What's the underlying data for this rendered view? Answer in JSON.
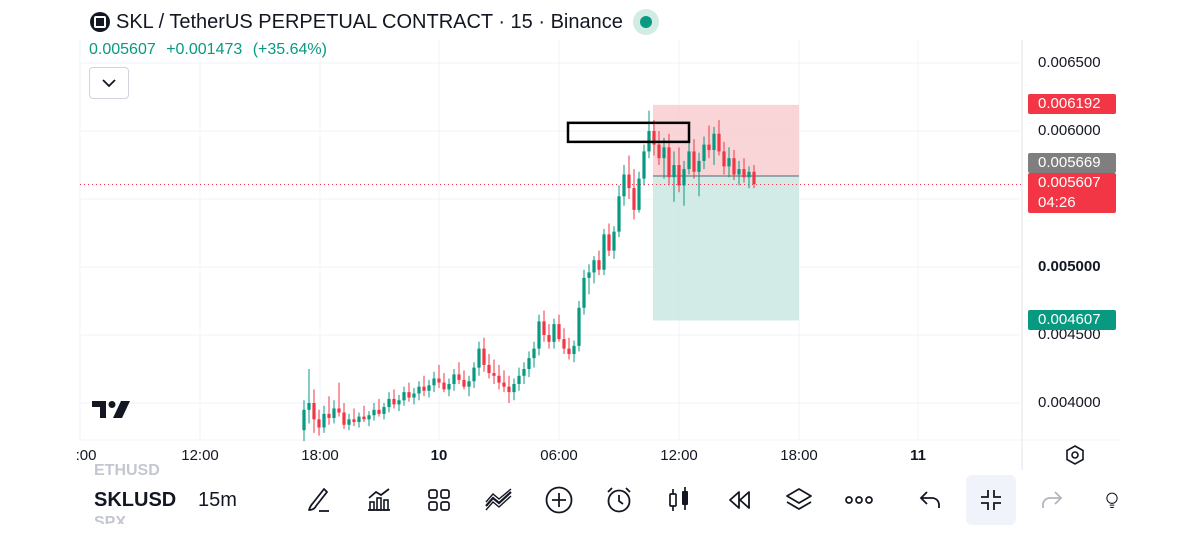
{
  "header": {
    "title": "SKL / TetherUS PERPETUAL CONTRACT · 15 · Binance",
    "last_price": "0.005607",
    "change": "+0.001473",
    "change_pct": "(+35.64%)"
  },
  "price_tags": {
    "stop": "0.006192",
    "entry": "0.005669",
    "last": "0.005607",
    "countdown": "04:26",
    "target": "0.004607"
  },
  "toolbar": {
    "symbol": "SKLUSD",
    "symbol_above": "ETHUSD",
    "symbol_below": "SPX",
    "interval": "15m"
  },
  "colors": {
    "up": "#089981",
    "down": "#f23645",
    "stop_zone": "#f8d0d4",
    "target_zone": "#cde9e3",
    "entry_tag": "#7f7f7f"
  },
  "icons": [
    "pen-icon",
    "indicators-icon",
    "templates-icon",
    "compare-icon",
    "add-icon",
    "alert-icon",
    "bar-style-icon",
    "replay-icon",
    "layers-icon",
    "more-icon",
    "undo-icon",
    "collapse-icon",
    "redo-icon",
    "idea-icon"
  ],
  "chart_data": {
    "type": "candlestick",
    "title": "SKL / TetherUS PERPETUAL CONTRACT · 15 · Binance",
    "xlabel": "",
    "ylabel": "",
    "ylim": [
      0.00375,
      0.00667
    ],
    "y_ticks": [
      "0.006500",
      "0.006000",
      "0.005000",
      "0.004500",
      "0.004000"
    ],
    "y_ticks_bold": [
      "0.005000"
    ],
    "x_ticks": [
      ":00",
      "12:00",
      "18:00",
      "10",
      "06:00",
      "12:00",
      "18:00",
      "11"
    ],
    "x_ticks_bold": [
      "10",
      "11"
    ],
    "interval_minutes": 15,
    "candles": [
      [
        0.0038,
        0.00402,
        0.00372,
        0.00395
      ],
      [
        0.00395,
        0.00425,
        0.00385,
        0.004
      ],
      [
        0.004,
        0.0041,
        0.00378,
        0.00388
      ],
      [
        0.00388,
        0.00395,
        0.00376,
        0.00382
      ],
      [
        0.00382,
        0.00398,
        0.00378,
        0.00392
      ],
      [
        0.00392,
        0.00405,
        0.00384,
        0.00389
      ],
      [
        0.00389,
        0.00402,
        0.00385,
        0.00396
      ],
      [
        0.00396,
        0.00415,
        0.0039,
        0.00393
      ],
      [
        0.00393,
        0.004,
        0.00381,
        0.00384
      ],
      [
        0.00384,
        0.00392,
        0.0038,
        0.00388
      ],
      [
        0.00388,
        0.00396,
        0.00383,
        0.00386
      ],
      [
        0.00386,
        0.00393,
        0.00382,
        0.0039
      ],
      [
        0.0039,
        0.00398,
        0.00386,
        0.00388
      ],
      [
        0.00388,
        0.00394,
        0.00383,
        0.00391
      ],
      [
        0.00391,
        0.004,
        0.00387,
        0.00395
      ],
      [
        0.00395,
        0.00403,
        0.0039,
        0.00392
      ],
      [
        0.00392,
        0.004,
        0.00388,
        0.00397
      ],
      [
        0.00397,
        0.00408,
        0.00393,
        0.00403
      ],
      [
        0.00403,
        0.0041,
        0.00396,
        0.00399
      ],
      [
        0.00399,
        0.00406,
        0.00394,
        0.00402
      ],
      [
        0.00402,
        0.00412,
        0.00398,
        0.00408
      ],
      [
        0.00408,
        0.00415,
        0.00401,
        0.00404
      ],
      [
        0.00404,
        0.00411,
        0.00399,
        0.00407
      ],
      [
        0.00407,
        0.00416,
        0.00402,
        0.00412
      ],
      [
        0.00412,
        0.0042,
        0.00405,
        0.00409
      ],
      [
        0.00409,
        0.00417,
        0.00404,
        0.00413
      ],
      [
        0.00413,
        0.00423,
        0.00408,
        0.00418
      ],
      [
        0.00418,
        0.00428,
        0.00411,
        0.00415
      ],
      [
        0.00415,
        0.00422,
        0.00408,
        0.0041
      ],
      [
        0.0041,
        0.00418,
        0.00405,
        0.00414
      ],
      [
        0.00414,
        0.00425,
        0.00409,
        0.00421
      ],
      [
        0.00421,
        0.0043,
        0.00414,
        0.00417
      ],
      [
        0.00417,
        0.00424,
        0.0041,
        0.00412
      ],
      [
        0.00412,
        0.0042,
        0.00405,
        0.00416
      ],
      [
        0.00416,
        0.0043,
        0.00411,
        0.00426
      ],
      [
        0.00426,
        0.00445,
        0.0042,
        0.0044
      ],
      [
        0.0044,
        0.00448,
        0.00423,
        0.00428
      ],
      [
        0.00428,
        0.00436,
        0.00418,
        0.00422
      ],
      [
        0.00422,
        0.00432,
        0.00414,
        0.0042
      ],
      [
        0.0042,
        0.00428,
        0.0041,
        0.00415
      ],
      [
        0.00415,
        0.00424,
        0.00408,
        0.00412
      ],
      [
        0.00412,
        0.0042,
        0.004,
        0.00408
      ],
      [
        0.00408,
        0.00418,
        0.00402,
        0.00414
      ],
      [
        0.00414,
        0.00426,
        0.00409,
        0.0042
      ],
      [
        0.0042,
        0.0043,
        0.00414,
        0.00425
      ],
      [
        0.00425,
        0.00438,
        0.00419,
        0.00433
      ],
      [
        0.00433,
        0.00445,
        0.00426,
        0.0044
      ],
      [
        0.0044,
        0.00465,
        0.00435,
        0.0046
      ],
      [
        0.0046,
        0.00468,
        0.00445,
        0.0045
      ],
      [
        0.0045,
        0.00458,
        0.0044,
        0.00445
      ],
      [
        0.00445,
        0.00462,
        0.0044,
        0.00458
      ],
      [
        0.00458,
        0.00465,
        0.00445,
        0.00447
      ],
      [
        0.00447,
        0.00455,
        0.00436,
        0.0044
      ],
      [
        0.0044,
        0.00448,
        0.00432,
        0.00436
      ],
      [
        0.00436,
        0.00446,
        0.0043,
        0.00442
      ],
      [
        0.00442,
        0.00475,
        0.00438,
        0.0047
      ],
      [
        0.0047,
        0.00498,
        0.00465,
        0.00492
      ],
      [
        0.00492,
        0.00502,
        0.0048,
        0.00496
      ],
      [
        0.00496,
        0.00508,
        0.00488,
        0.00505
      ],
      [
        0.00505,
        0.00512,
        0.00494,
        0.00498
      ],
      [
        0.00498,
        0.00528,
        0.00494,
        0.00524
      ],
      [
        0.00524,
        0.00532,
        0.00508,
        0.00512
      ],
      [
        0.00512,
        0.0053,
        0.00506,
        0.00526
      ],
      [
        0.00526,
        0.0056,
        0.00522,
        0.00552
      ],
      [
        0.00552,
        0.00575,
        0.00545,
        0.00568
      ],
      [
        0.00568,
        0.00582,
        0.0055,
        0.00558
      ],
      [
        0.00558,
        0.00572,
        0.00535,
        0.00542
      ],
      [
        0.00542,
        0.0057,
        0.0054,
        0.00565
      ],
      [
        0.00565,
        0.0059,
        0.0056,
        0.00585
      ],
      [
        0.00585,
        0.00615,
        0.0058,
        0.006
      ],
      [
        0.006,
        0.00608,
        0.00582,
        0.0059
      ],
      [
        0.0059,
        0.006,
        0.00575,
        0.0058
      ],
      [
        0.0058,
        0.00595,
        0.00565,
        0.00588
      ],
      [
        0.00588,
        0.00598,
        0.0056,
        0.00566
      ],
      [
        0.00566,
        0.00585,
        0.00548,
        0.00575
      ],
      [
        0.00575,
        0.00588,
        0.00555,
        0.0056
      ],
      [
        0.0056,
        0.00578,
        0.00545,
        0.00572
      ],
      [
        0.00572,
        0.00592,
        0.00568,
        0.00585
      ],
      [
        0.00585,
        0.00594,
        0.00565,
        0.0057
      ],
      [
        0.0057,
        0.00584,
        0.00552,
        0.00578
      ],
      [
        0.00578,
        0.00596,
        0.00572,
        0.0059
      ],
      [
        0.0059,
        0.00604,
        0.0058,
        0.00586
      ],
      [
        0.00586,
        0.00603,
        0.00575,
        0.00598
      ],
      [
        0.00598,
        0.00608,
        0.00582,
        0.00585
      ],
      [
        0.00585,
        0.00592,
        0.00568,
        0.00574
      ],
      [
        0.00574,
        0.00588,
        0.00566,
        0.0058
      ],
      [
        0.0058,
        0.00586,
        0.00564,
        0.00568
      ],
      [
        0.00568,
        0.00578,
        0.0056,
        0.00572
      ],
      [
        0.00572,
        0.0058,
        0.00562,
        0.00566
      ],
      [
        0.00566,
        0.00574,
        0.00558,
        0.0057
      ],
      [
        0.0057,
        0.00575,
        0.00558,
        0.00561
      ]
    ],
    "position": {
      "type": "short",
      "entry": 0.005669,
      "stop": 0.006192,
      "target": 0.004607
    },
    "last_price": 0.005607,
    "annotation_box": {
      "price_low": 0.00592,
      "price_high": 0.00606
    }
  }
}
